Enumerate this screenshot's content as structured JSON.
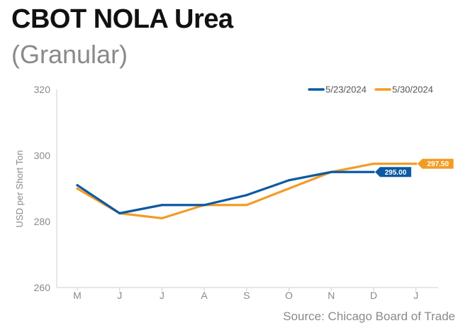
{
  "header": {
    "title": "CBOT NOLA Urea",
    "subtitle": "(Granular)"
  },
  "footer": {
    "source": "Source: Chicago Board of Trade"
  },
  "chart_data": {
    "type": "line",
    "title": "CBOT NOLA Urea",
    "subtitle": "(Granular)",
    "ylabel": "USD per Short Ton",
    "xlabel": "",
    "categories": [
      "M",
      "J",
      "J",
      "A",
      "S",
      "O",
      "N",
      "D",
      "J"
    ],
    "ylim": [
      260,
      320
    ],
    "yticks": [
      260,
      280,
      300,
      320
    ],
    "grid": false,
    "legend_position": "top-right",
    "series": [
      {
        "name": "5/23/2024",
        "color": "#0b5aa2",
        "values": [
          291.0,
          282.5,
          285.0,
          285.0,
          288.0,
          292.5,
          295.0,
          295.0,
          null
        ],
        "end_label": "295.00"
      },
      {
        "name": "5/30/2024",
        "color": "#f39c25",
        "values": [
          290.0,
          282.5,
          281.0,
          285.0,
          285.0,
          290.0,
          295.0,
          297.5,
          297.5
        ],
        "end_label": "297.50"
      }
    ]
  }
}
